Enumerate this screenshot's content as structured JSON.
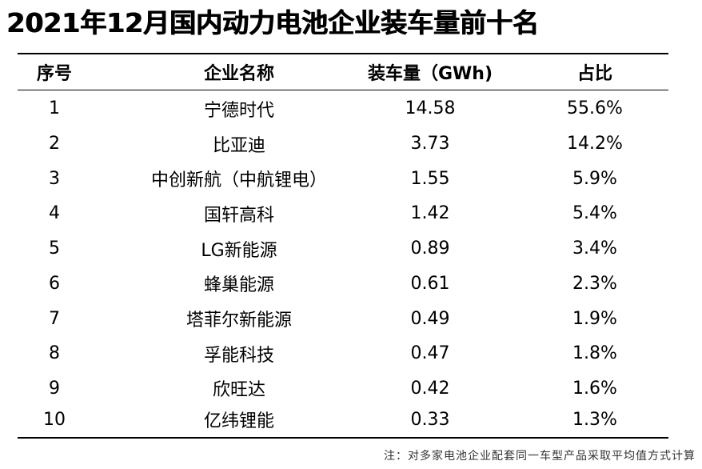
{
  "title": "2021年12月国内动力电池企业装车量前十名",
  "table": {
    "headers": [
      "序号",
      "企业名称",
      "装车量（GWh)",
      "占比"
    ],
    "rows": [
      {
        "rank": "1",
        "company": "宁德时代",
        "volume": "14.58",
        "share": "55.6%"
      },
      {
        "rank": "2",
        "company": "比亚迪",
        "volume": "3.73",
        "share": "14.2%"
      },
      {
        "rank": "3",
        "company": "中创新航（中航锂电）",
        "volume": "1.55",
        "share": "5.9%"
      },
      {
        "rank": "4",
        "company": "国轩高科",
        "volume": "1.42",
        "share": "5.4%"
      },
      {
        "rank": "5",
        "company": "LG新能源",
        "volume": "0.89",
        "share": "3.4%"
      },
      {
        "rank": "6",
        "company": "蜂巢能源",
        "volume": "0.61",
        "share": "2.3%"
      },
      {
        "rank": "7",
        "company": "塔菲尔新能源",
        "volume": "0.49",
        "share": "1.9%"
      },
      {
        "rank": "8",
        "company": "孚能科技",
        "volume": "0.47",
        "share": "1.8%"
      },
      {
        "rank": "9",
        "company": "欣旺达",
        "volume": "0.42",
        "share": "1.6%"
      },
      {
        "rank": "10",
        "company": "亿纬锂能",
        "volume": "0.33",
        "share": "1.3%"
      }
    ]
  },
  "note": "注：对多家电池企业配套同一车型产品采取平均值方式计算"
}
